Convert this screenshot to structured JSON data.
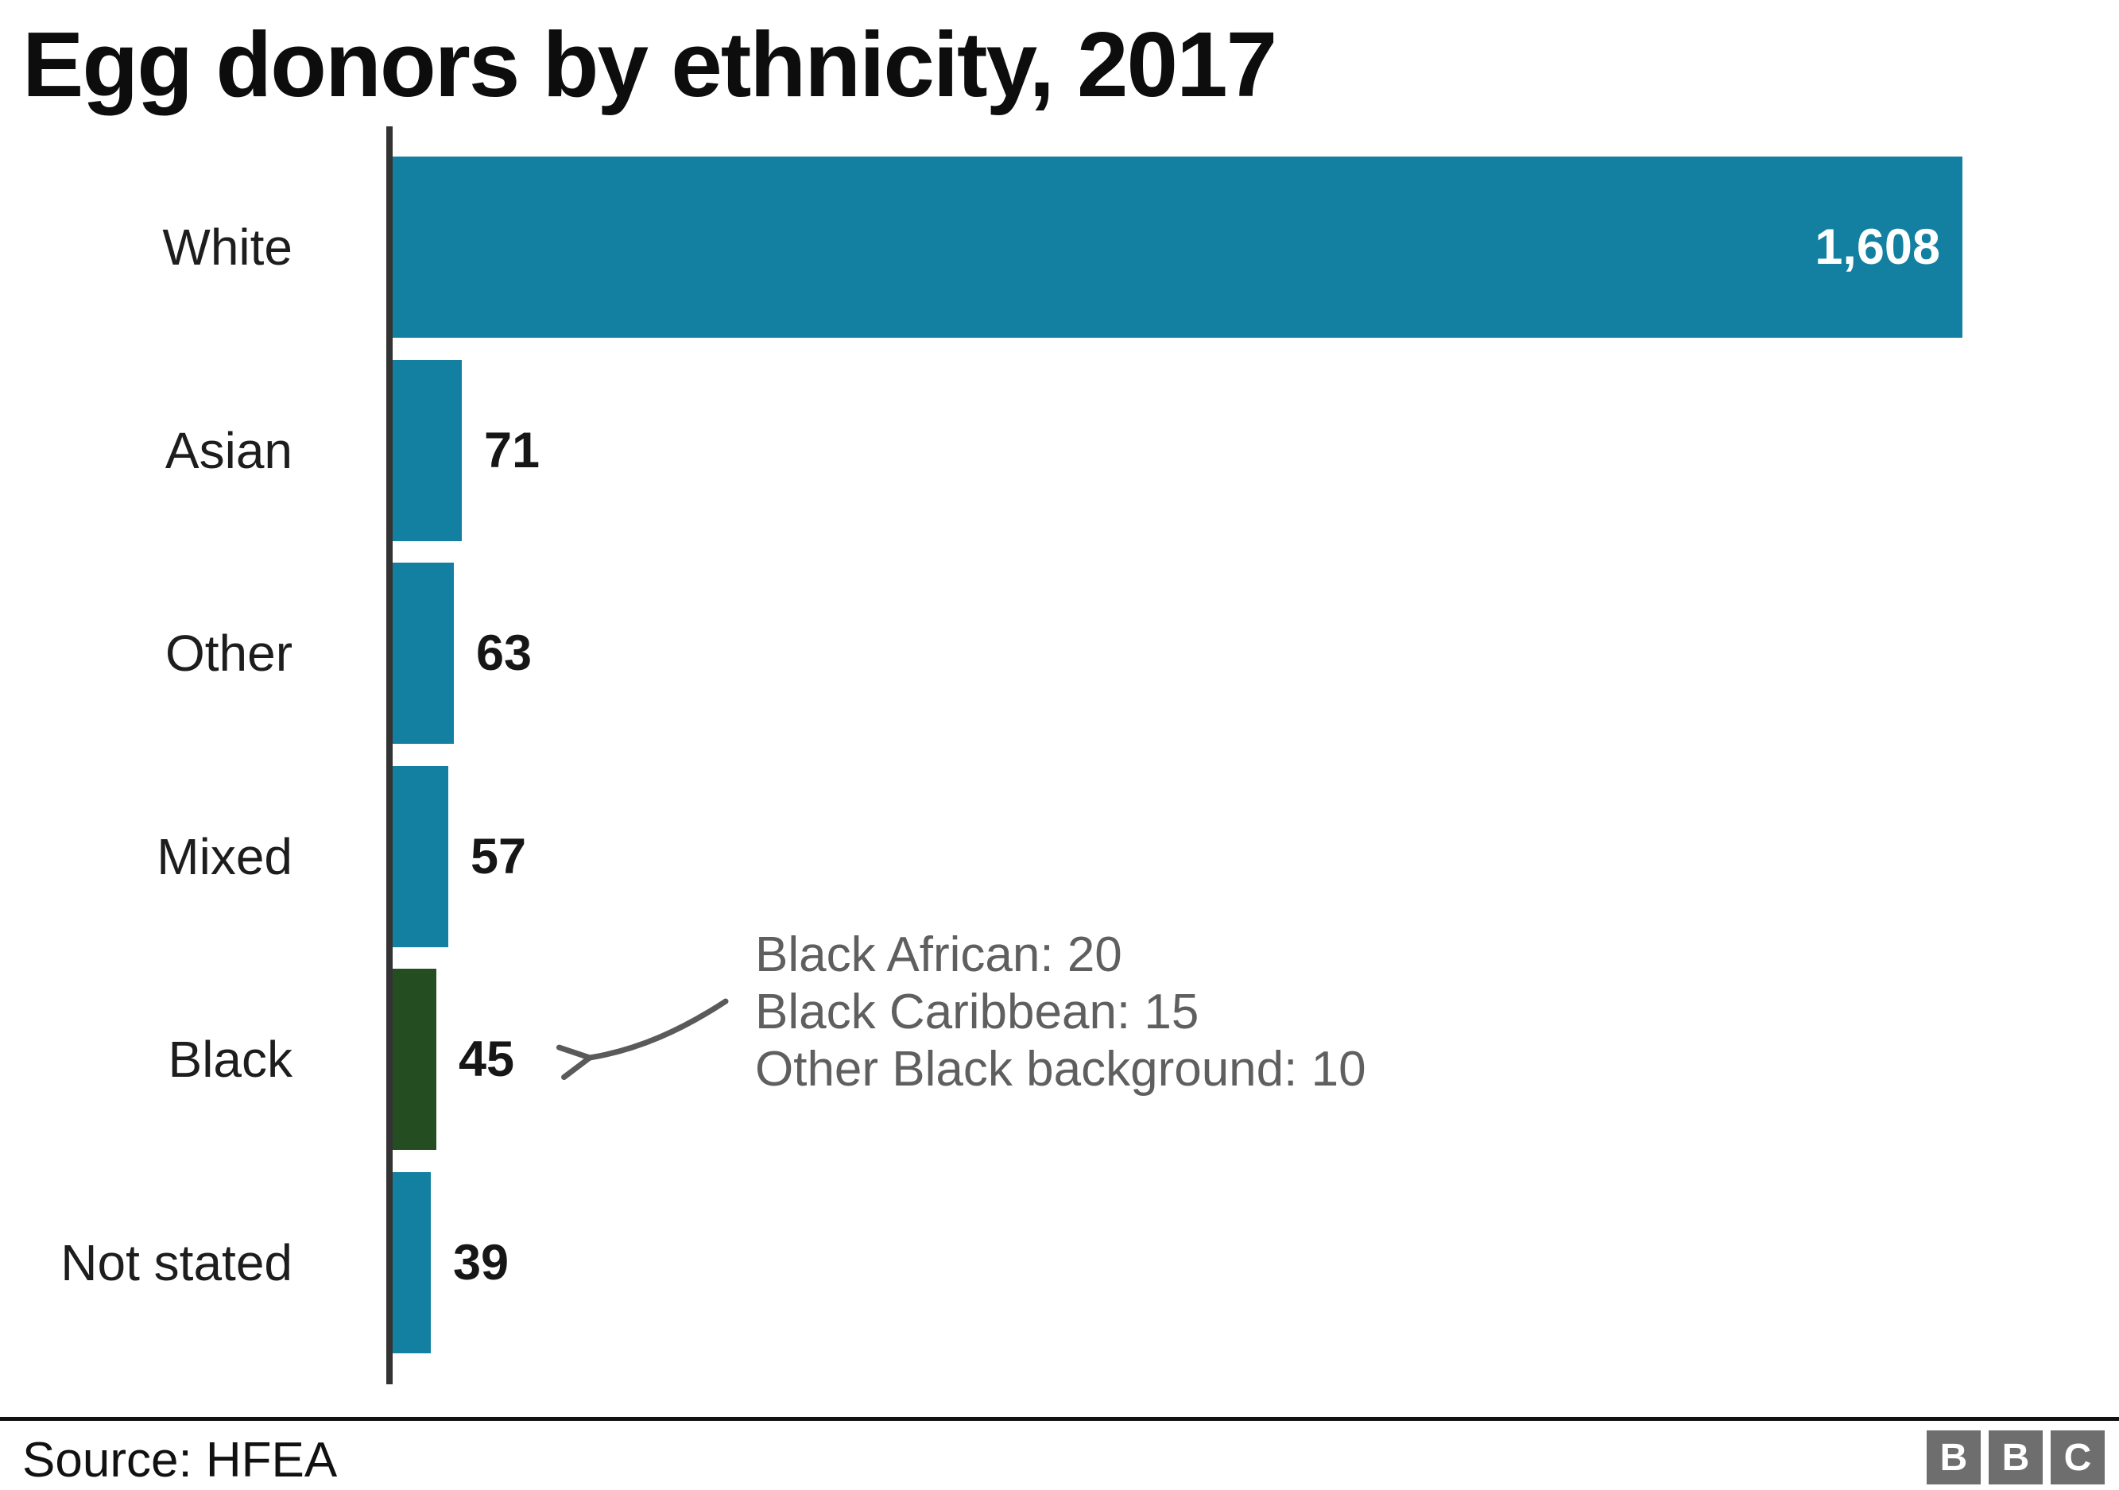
{
  "title": "Egg donors by ethnicity, 2017",
  "chart_data": {
    "type": "bar",
    "orientation": "horizontal",
    "title": "Egg donors by ethnicity, 2017",
    "categories": [
      "White",
      "Asian",
      "Other",
      "Mixed",
      "Black",
      "Not stated"
    ],
    "values": [
      1608,
      71,
      63,
      57,
      45,
      39
    ],
    "value_labels": [
      "1,608",
      "71",
      "63",
      "57",
      "45",
      "39"
    ],
    "xlim": [
      0,
      1608
    ],
    "grid": false,
    "legend": false,
    "bar_color_default": "#1380a1",
    "highlight": {
      "category": "Black",
      "color": "#254d22"
    },
    "annotation": {
      "lines": [
        "Black African: 20",
        "Black Caribbean: 15",
        "Other Black background: 10"
      ],
      "target_category": "Black",
      "target_value_label": "45"
    }
  },
  "footer": {
    "source": "Source: HFEA",
    "logo_letters": [
      "B",
      "B",
      "C"
    ]
  },
  "colors": {
    "background": "#ffffff",
    "bar_teal": "#1380a1",
    "bar_green": "#254d22",
    "axis": "#333333",
    "title_text": "#0d0d0d",
    "category_text": "#1d1d1d",
    "value_text": "#161616",
    "value_text_inside": "#ffffff",
    "annotation_text": "#5f5f5f",
    "arrow": "#5a5a5a",
    "divider": "#111111",
    "logo_background": "#6e6e6e",
    "logo_text": "#ffffff"
  }
}
